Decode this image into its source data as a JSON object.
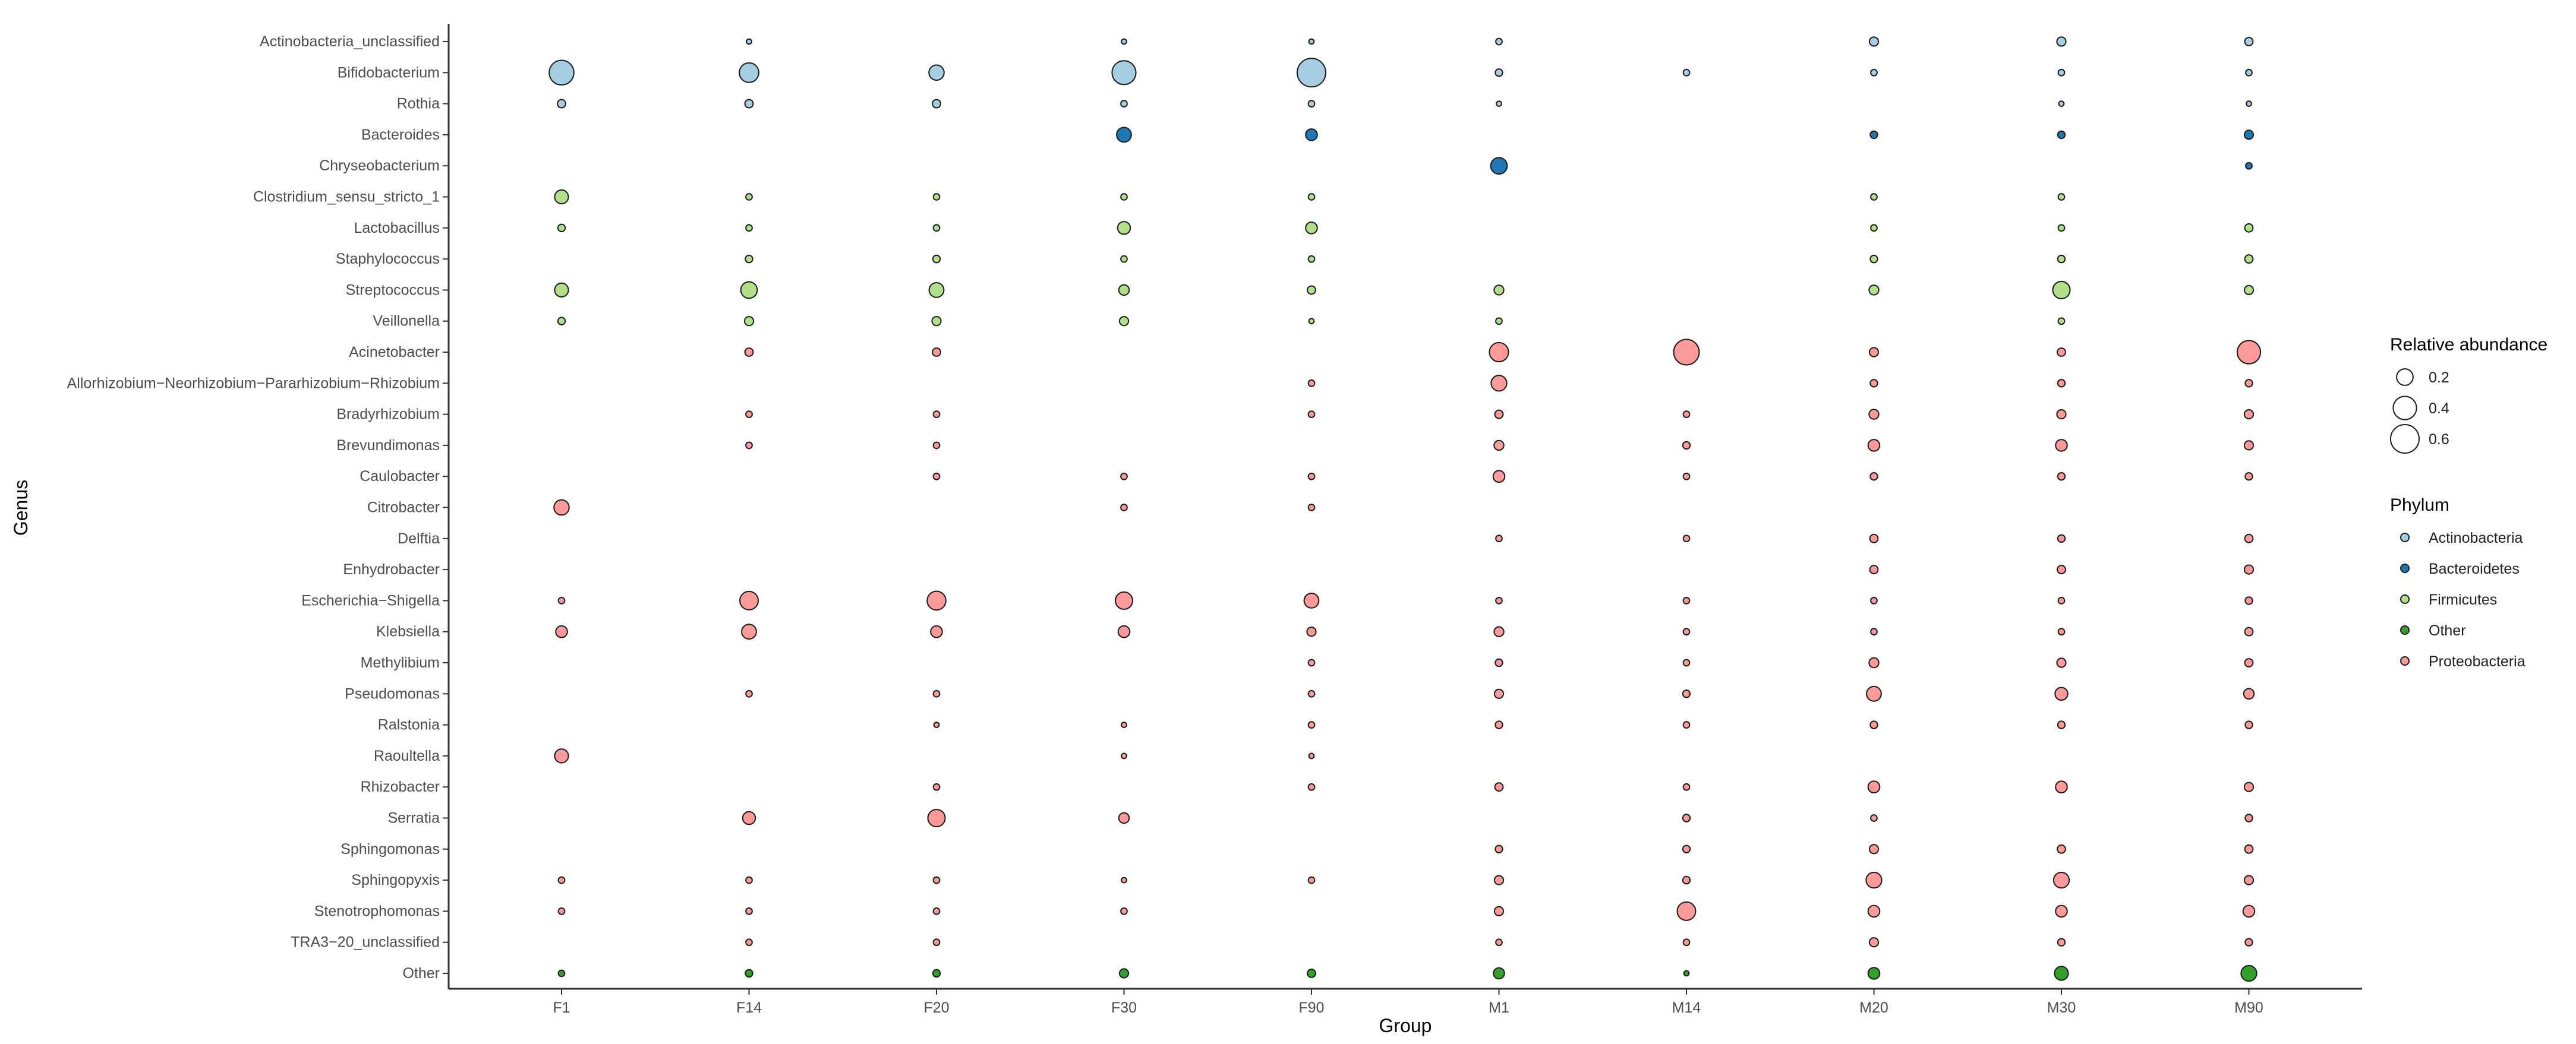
{
  "chart_data": {
    "type": "scatter",
    "subtype": "bubble",
    "xlabel": "Group",
    "ylabel": "Genus",
    "x_categories": [
      "F1",
      "F14",
      "F20",
      "F30",
      "F90",
      "M1",
      "M14",
      "M20",
      "M30",
      "M90"
    ],
    "y_categories": [
      "Actinobacteria_unclassified",
      "Bifidobacterium",
      "Rothia",
      "Bacteroides",
      "Chryseobacterium",
      "Clostridium_sensu_stricto_1",
      "Lactobacillus",
      "Staphylococcus",
      "Streptococcus",
      "Veillonella",
      "Acinetobacter",
      "Allorhizobium−Neorhizobium−Pararhizobium−Rhizobium",
      "Bradyrhizobium",
      "Brevundimonas",
      "Caulobacter",
      "Citrobacter",
      "Delftia",
      "Enhydrobacter",
      "Escherichia−Shigella",
      "Klebsiella",
      "Methylibium",
      "Pseudomonas",
      "Ralstonia",
      "Raoultella",
      "Rhizobacter",
      "Serratia",
      "Sphingomonas",
      "Sphingopyxis",
      "Stenotrophomonas",
      "TRA3−20_unclassified",
      "Other"
    ],
    "phylum_colors": {
      "Actinobacteria": "#a6cee3",
      "Bacteroidetes": "#1f78b4",
      "Firmicutes": "#b2df8a",
      "Other": "#33a02c",
      "Proteobacteria": "#fb9a99"
    },
    "genus_phylum": {
      "Actinobacteria_unclassified": "Actinobacteria",
      "Bifidobacterium": "Actinobacteria",
      "Rothia": "Actinobacteria",
      "Bacteroides": "Bacteroidetes",
      "Chryseobacterium": "Bacteroidetes",
      "Clostridium_sensu_stricto_1": "Firmicutes",
      "Lactobacillus": "Firmicutes",
      "Staphylococcus": "Firmicutes",
      "Streptococcus": "Firmicutes",
      "Veillonella": "Firmicutes",
      "Acinetobacter": "Proteobacteria",
      "Allorhizobium−Neorhizobium−Pararhizobium−Rhizobium": "Proteobacteria",
      "Bradyrhizobium": "Proteobacteria",
      "Brevundimonas": "Proteobacteria",
      "Caulobacter": "Proteobacteria",
      "Citrobacter": "Proteobacteria",
      "Delftia": "Proteobacteria",
      "Enhydrobacter": "Proteobacteria",
      "Escherichia−Shigella": "Proteobacteria",
      "Klebsiella": "Proteobacteria",
      "Methylibium": "Proteobacteria",
      "Pseudomonas": "Proteobacteria",
      "Ralstonia": "Proteobacteria",
      "Raoultella": "Proteobacteria",
      "Rhizobacter": "Proteobacteria",
      "Serratia": "Proteobacteria",
      "Sphingomonas": "Proteobacteria",
      "Sphingopyxis": "Proteobacteria",
      "Stenotrophomonas": "Proteobacteria",
      "TRA3−20_unclassified": "Proteobacteria",
      "Other": "Other"
    },
    "abundance": {
      "Actinobacteria_unclassified": [
        null,
        0.02,
        null,
        0.02,
        0.02,
        0.03,
        null,
        0.06,
        0.06,
        0.05
      ],
      "Bifidobacterium": [
        0.45,
        0.28,
        0.17,
        0.42,
        0.6,
        0.04,
        0.03,
        0.03,
        0.03,
        0.03
      ],
      "Rothia": [
        0.05,
        0.05,
        0.05,
        0.03,
        0.03,
        0.02,
        null,
        null,
        0.02,
        0.02
      ],
      "Bacteroides": [
        null,
        null,
        null,
        0.16,
        0.1,
        null,
        null,
        0.04,
        0.04,
        0.06
      ],
      "Chryseobacterium": [
        null,
        null,
        null,
        null,
        null,
        0.2,
        null,
        null,
        null,
        0.03
      ],
      "Clostridium_sensu_stricto_1": [
        0.14,
        0.03,
        0.03,
        0.03,
        0.03,
        null,
        null,
        0.03,
        0.03,
        null
      ],
      "Lactobacillus": [
        0.04,
        0.03,
        0.03,
        0.12,
        0.1,
        null,
        null,
        0.03,
        0.03,
        0.05
      ],
      "Staphylococcus": [
        null,
        0.04,
        0.04,
        0.03,
        0.03,
        null,
        null,
        0.04,
        0.04,
        0.05
      ],
      "Streptococcus": [
        0.14,
        0.2,
        0.16,
        0.08,
        0.05,
        0.07,
        null,
        0.07,
        0.22,
        0.06
      ],
      "Veillonella": [
        0.04,
        0.06,
        0.06,
        0.06,
        0.02,
        0.03,
        null,
        null,
        0.03,
        null
      ],
      "Acinetobacter": [
        null,
        0.05,
        0.05,
        null,
        null,
        0.27,
        0.48,
        0.06,
        0.05,
        0.4
      ],
      "Allorhizobium−Neorhizobium−Pararhizobium−Rhizobium": [
        null,
        null,
        null,
        null,
        0.03,
        0.18,
        null,
        0.04,
        0.04,
        0.04
      ],
      "Bradyrhizobium": [
        null,
        0.03,
        0.03,
        null,
        0.03,
        0.05,
        0.03,
        0.07,
        0.06,
        0.06
      ],
      "Brevundimonas": [
        null,
        0.03,
        0.03,
        null,
        null,
        0.07,
        0.04,
        0.1,
        0.1,
        0.06
      ],
      "Caulobacter": [
        null,
        null,
        0.03,
        0.03,
        0.03,
        0.1,
        0.03,
        0.04,
        0.04,
        0.04
      ],
      "Citrobacter": [
        0.17,
        null,
        null,
        0.03,
        0.03,
        null,
        null,
        null,
        null,
        null
      ],
      "Delftia": [
        null,
        null,
        null,
        null,
        null,
        0.03,
        0.03,
        0.05,
        0.04,
        0.05
      ],
      "Enhydrobacter": [
        null,
        null,
        null,
        null,
        null,
        null,
        null,
        0.05,
        0.05,
        0.06
      ],
      "Escherichia−Shigella": [
        0.03,
        0.25,
        0.26,
        0.22,
        0.16,
        0.03,
        0.03,
        0.03,
        0.03,
        0.04
      ],
      "Klebsiella": [
        0.1,
        0.16,
        0.1,
        0.1,
        0.06,
        0.07,
        0.03,
        0.03,
        0.03,
        0.05
      ],
      "Methylibium": [
        null,
        null,
        null,
        null,
        0.03,
        0.04,
        0.03,
        0.07,
        0.06,
        0.05
      ],
      "Pseudomonas": [
        null,
        0.03,
        0.03,
        null,
        0.03,
        0.06,
        0.04,
        0.16,
        0.12,
        0.08
      ],
      "Ralstonia": [
        null,
        null,
        0.02,
        0.02,
        0.03,
        0.04,
        0.03,
        0.04,
        0.04,
        0.04
      ],
      "Raoultella": [
        0.14,
        null,
        null,
        0.02,
        0.02,
        null,
        null,
        null,
        null,
        null
      ],
      "Rhizobacter": [
        null,
        null,
        0.03,
        null,
        0.03,
        0.05,
        0.03,
        0.1,
        0.1,
        0.06
      ],
      "Serratia": [
        null,
        0.12,
        0.22,
        0.08,
        null,
        null,
        0.04,
        0.03,
        null,
        0.04
      ],
      "Sphingomonas": [
        null,
        null,
        null,
        null,
        null,
        0.04,
        0.04,
        0.06,
        0.05,
        0.05
      ],
      "Sphingopyxis": [
        0.03,
        0.03,
        0.03,
        0.02,
        0.03,
        0.06,
        0.04,
        0.18,
        0.18,
        0.06
      ],
      "Stenotrophomonas": [
        0.03,
        0.03,
        0.03,
        0.03,
        null,
        0.06,
        0.25,
        0.1,
        0.1,
        0.1
      ],
      "TRA3−20_unclassified": [
        null,
        0.03,
        0.03,
        null,
        null,
        0.03,
        0.03,
        0.06,
        0.04,
        0.04
      ],
      "Other": [
        0.03,
        0.04,
        0.04,
        0.06,
        0.05,
        0.09,
        0.02,
        0.1,
        0.14,
        0.18
      ]
    },
    "legend": {
      "size_title": "Relative abundance",
      "size_breaks": [
        0.2,
        0.4,
        0.6
      ],
      "size_labels": [
        "0.2",
        "0.4",
        "0.6"
      ],
      "color_title": "Phylum",
      "color_labels": [
        "Actinobacteria",
        "Bacteroidetes",
        "Firmicutes",
        "Other",
        "Proteobacteria"
      ],
      "placement": "right"
    },
    "grid": false
  }
}
